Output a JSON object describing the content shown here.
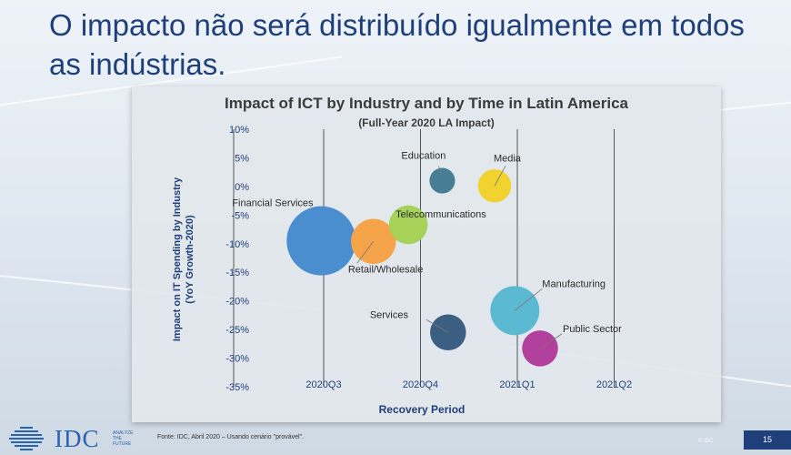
{
  "slide": {
    "title": "O impacto não será distribuído igualmente em todos as indústrias.",
    "page_number": "15",
    "copyright": "© IDC"
  },
  "footer": {
    "logo": "IDC",
    "tagline": [
      "ANALYZE",
      "THE",
      "FUTURE"
    ],
    "source": "Fonte: IDC, Abril 2020 – Usando cenário \"provável\"."
  },
  "colors": {
    "title": "#1f3f7a",
    "axis_label": "#1f3f7a",
    "page_badge": "#1f3f7a"
  },
  "chart_data": {
    "type": "scatter",
    "title": "Impact of ICT by Industry and by Time in Latin America",
    "subtitle": "(Full-Year 2020 LA Impact)",
    "xlabel": "Recovery Period",
    "ylabel": "Impact on IT Spending by Industry (YoY Growth-2020)",
    "ylabel_lines": [
      "Impact on IT Spending  by Industry",
      "(YoY Growth-2020)"
    ],
    "x_categories": [
      "2020Q3",
      "2020Q4",
      "2021Q1",
      "2021Q2"
    ],
    "y_ticks": [
      "10%",
      "5%",
      "0%",
      "-5%",
      "-10%",
      "-15%",
      "-20%",
      "-25%",
      "-30%",
      "-35%"
    ],
    "ylim": [
      -35,
      10
    ],
    "grid": "vertical",
    "series": [
      {
        "name": "Financial Services",
        "x": 0.97,
        "y": -9.5,
        "size": 1.0,
        "color": "#4a8ecf"
      },
      {
        "name": "Retail/Wholesale",
        "x": 1.51,
        "y": -9.6,
        "size": 0.65,
        "color": "#f5a44a"
      },
      {
        "name": "Telecommunications",
        "x": 1.87,
        "y": -6.7,
        "size": 0.56,
        "color": "#a6d25a"
      },
      {
        "name": "Education",
        "x": 2.22,
        "y": 1.0,
        "size": 0.37,
        "color": "#457e95"
      },
      {
        "name": "Media",
        "x": 2.76,
        "y": 0.1,
        "size": 0.48,
        "color": "#f2d22e"
      },
      {
        "name": "Services",
        "x": 2.28,
        "y": -25.5,
        "size": 0.52,
        "color": "#3b5f82"
      },
      {
        "name": "Manufacturing",
        "x": 2.97,
        "y": -21.7,
        "size": 0.71,
        "color": "#5bbad2"
      },
      {
        "name": "Public Sector",
        "x": 3.23,
        "y": -28.3,
        "size": 0.52,
        "color": "#b1419c"
      }
    ]
  }
}
